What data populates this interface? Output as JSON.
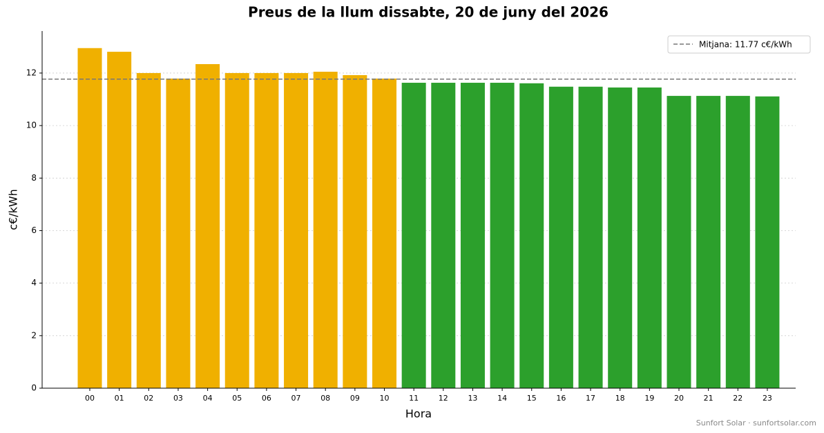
{
  "chart_data": {
    "type": "bar",
    "title": "Preus de la llum dissabte, 20 de juny del 2026",
    "x_label": "Hora",
    "y_label": "c€/kWh",
    "categories": [
      "00",
      "01",
      "02",
      "03",
      "04",
      "05",
      "06",
      "07",
      "08",
      "09",
      "10",
      "11",
      "12",
      "13",
      "14",
      "15",
      "16",
      "17",
      "18",
      "19",
      "20",
      "21",
      "22",
      "23"
    ],
    "values": [
      12.95,
      12.81,
      12.0,
      11.79,
      12.34,
      12.0,
      12.0,
      12.0,
      12.05,
      11.92,
      11.79,
      11.63,
      11.63,
      11.63,
      11.63,
      11.61,
      11.48,
      11.48,
      11.45,
      11.45,
      11.13,
      11.13,
      11.13,
      11.11
    ],
    "colors": [
      "#f0b000",
      "#f0b000",
      "#f0b000",
      "#f0b000",
      "#f0b000",
      "#f0b000",
      "#f0b000",
      "#f0b000",
      "#f0b000",
      "#f0b000",
      "#f0b000",
      "#2ca02c",
      "#2ca02c",
      "#2ca02c",
      "#2ca02c",
      "#2ca02c",
      "#2ca02c",
      "#2ca02c",
      "#2ca02c",
      "#2ca02c",
      "#2ca02c",
      "#2ca02c",
      "#2ca02c",
      "#2ca02c"
    ],
    "mean": 11.77,
    "mean_label": "Mitjana: 11.77 c€/kWh",
    "legend": "upper right",
    "ylim": [
      0,
      13.6
    ],
    "yticks": [
      0,
      2,
      4,
      6,
      8,
      10,
      12
    ],
    "grid": true,
    "footer": "Sunfort Solar · sunfortsolar.com"
  }
}
